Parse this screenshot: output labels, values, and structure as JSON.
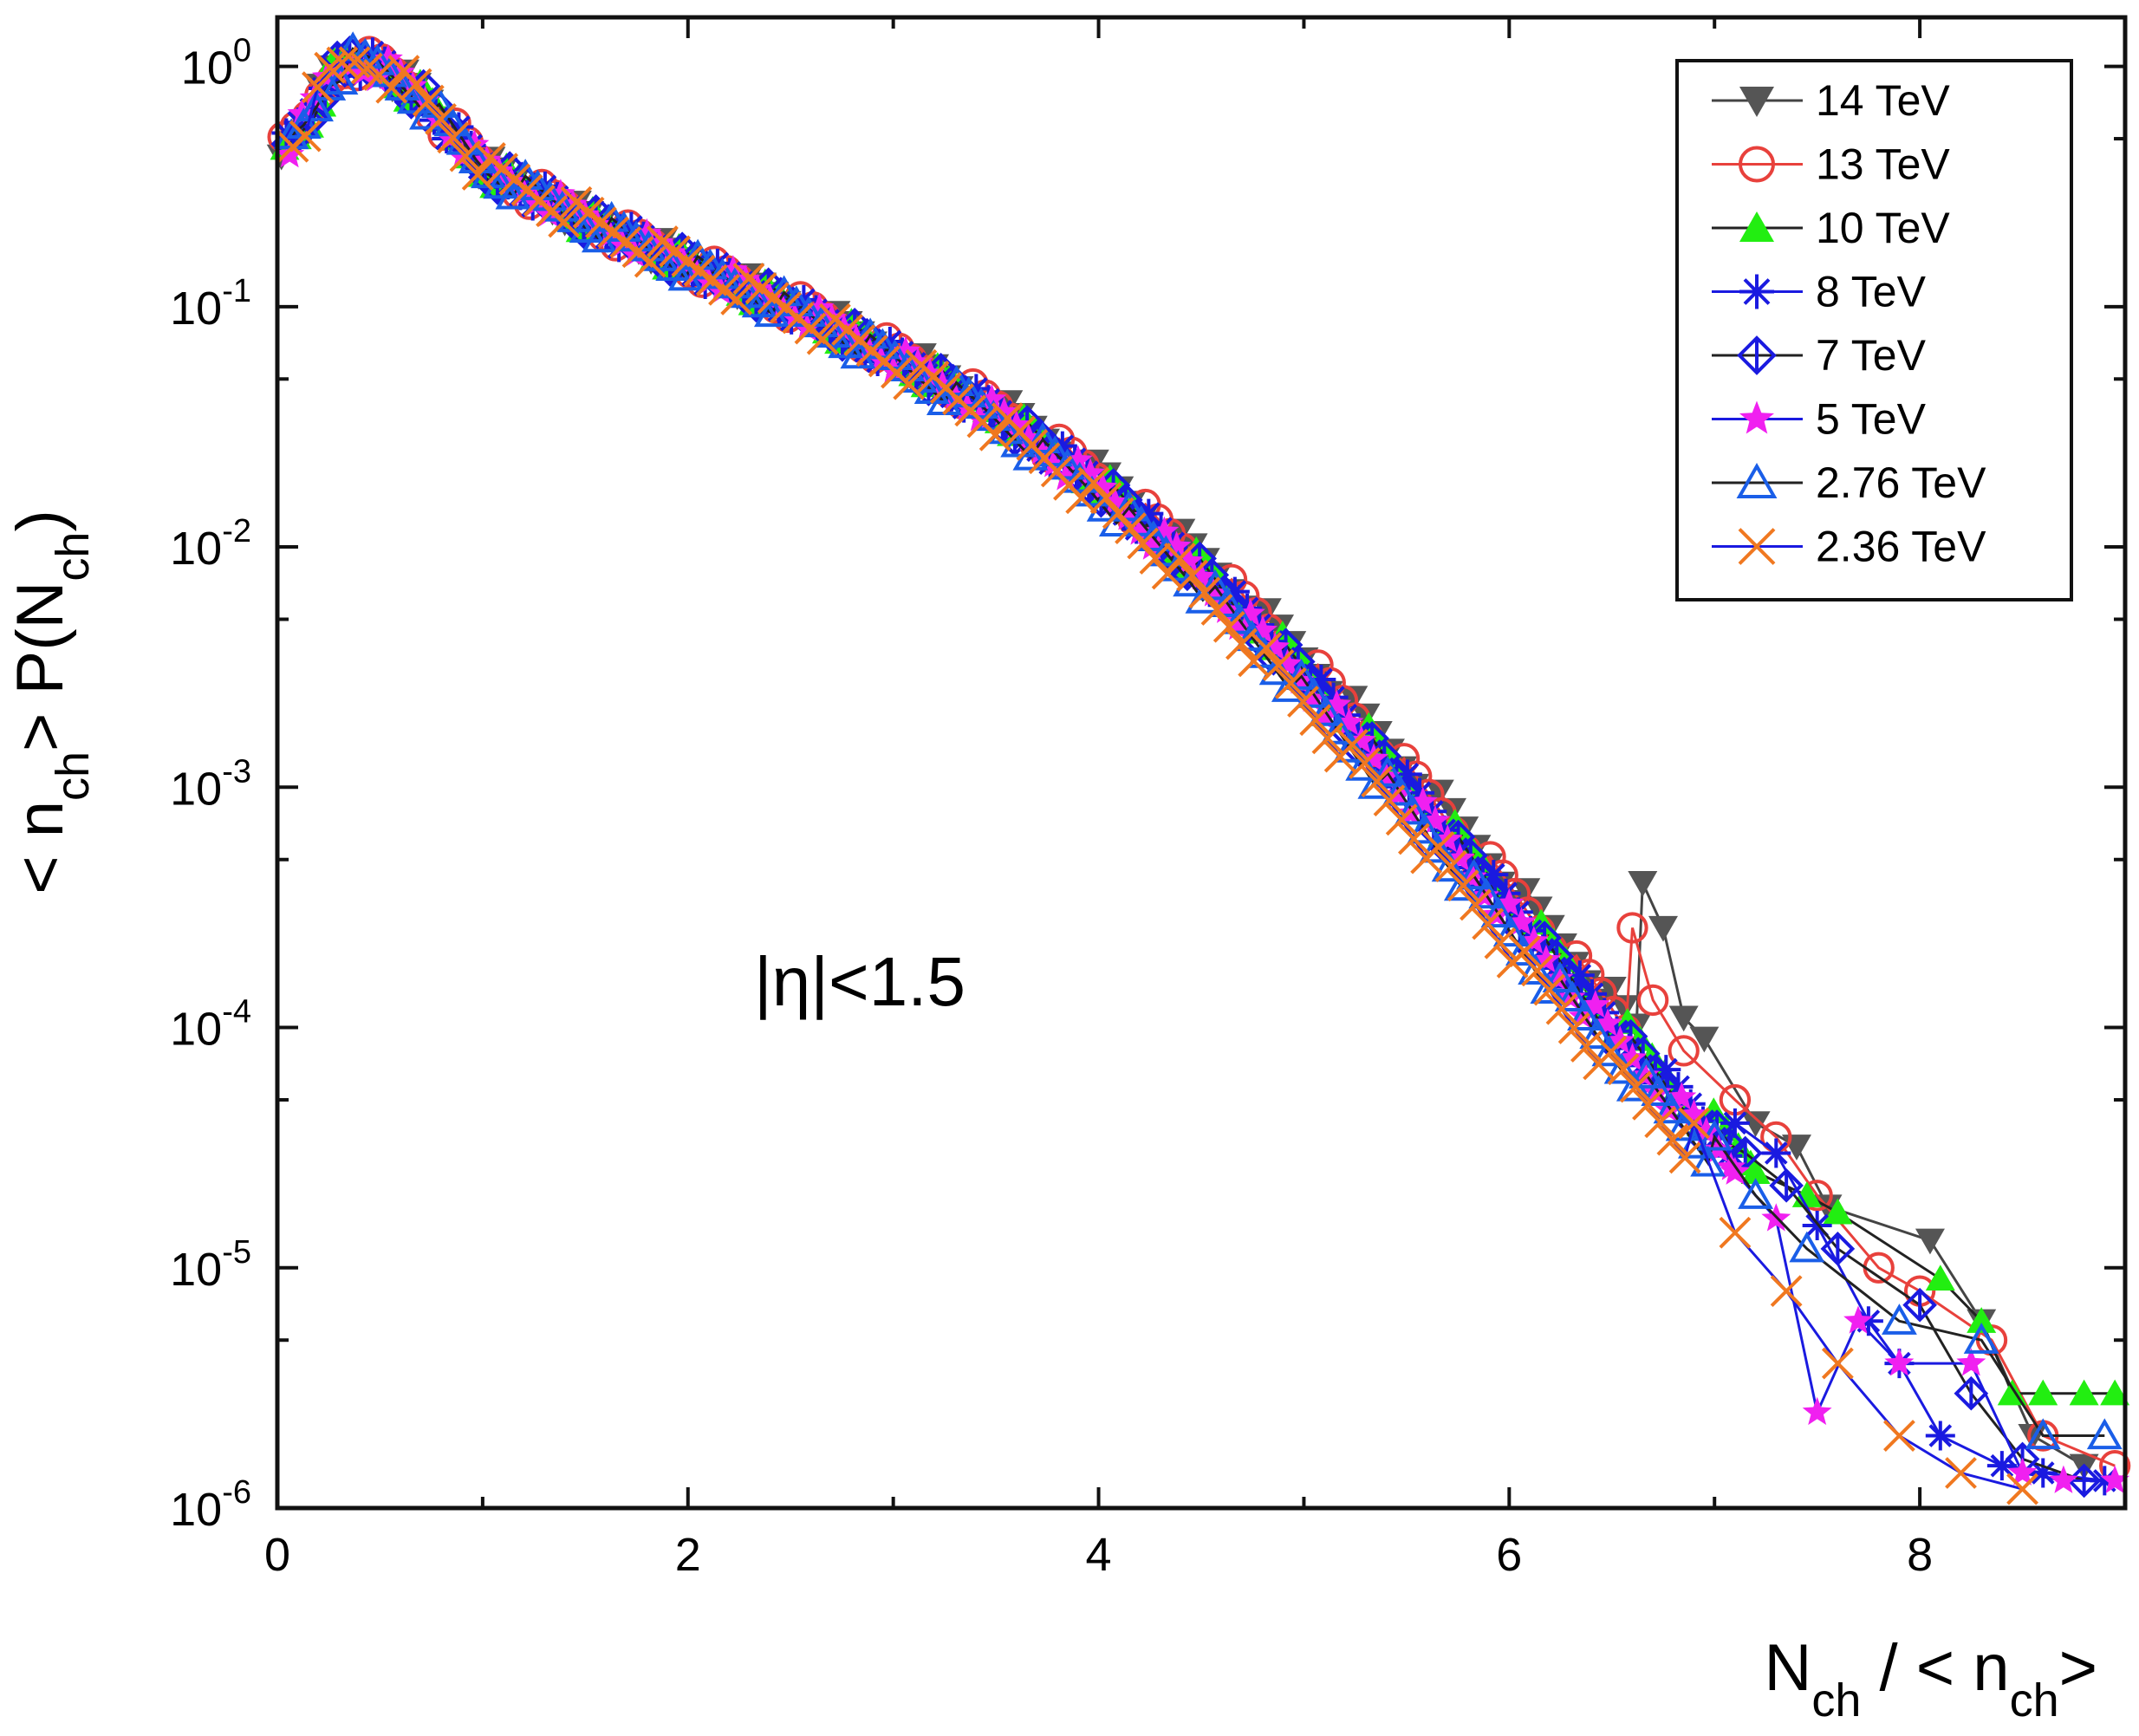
{
  "chart_data": {
    "type": "scatter",
    "title": "",
    "xlabel": {
      "main": "N",
      "sub1": "ch",
      "mid": " / < n",
      "sub2": "ch",
      "end": ">"
    },
    "ylabel": {
      "pre": "< n",
      "sub1": "ch",
      "mid": "> P(N",
      "sub2": "ch",
      "end": ")"
    },
    "xlim": [
      0,
      9
    ],
    "ylim": [
      1e-06,
      1.6
    ],
    "yscale": "log",
    "x_ticks": [
      "0",
      "2",
      "4",
      "6",
      "8"
    ],
    "x_tick_values": [
      0,
      2,
      4,
      6,
      8
    ],
    "y_ticks": [
      {
        "base": "10",
        "exp": "0",
        "value": 1
      },
      {
        "base": "10",
        "exp": "-1",
        "value": 0.1
      },
      {
        "base": "10",
        "exp": "-2",
        "value": 0.01
      },
      {
        "base": "10",
        "exp": "-3",
        "value": 0.001
      },
      {
        "base": "10",
        "exp": "-4",
        "value": 0.0001
      },
      {
        "base": "10",
        "exp": "-5",
        "value": 1e-05
      },
      {
        "base": "10",
        "exp": "-6",
        "value": 1e-06
      }
    ],
    "annotation": "|η|<1.5",
    "legend_position": "top-right",
    "series": [
      {
        "name": "14 TeV",
        "marker": "triangle-down-filled",
        "marker_color": "#555555",
        "line_color": "#444444",
        "shift": 0.14,
        "tail": [
          [
            6.65,
            0.0004
          ],
          [
            6.75,
            0.00026
          ],
          [
            6.85,
            0.00011
          ],
          [
            6.95,
            9e-05
          ],
          [
            7.2,
            4e-05
          ],
          [
            7.4,
            3.2e-05
          ],
          [
            7.55,
            1.8e-05
          ],
          [
            8.05,
            1.3e-05
          ],
          [
            8.3,
            6e-06
          ],
          [
            8.55,
            2e-06
          ],
          [
            8.8,
            1.5e-06
          ]
        ]
      },
      {
        "name": "13 TeV",
        "marker": "circle-open",
        "marker_color": "#e8413c",
        "line_color": "#e8413c",
        "shift": 0.1,
        "tail": [
          [
            6.6,
            0.00026
          ],
          [
            6.7,
            0.00013
          ],
          [
            6.85,
            8e-05
          ],
          [
            7.1,
            5e-05
          ],
          [
            7.3,
            3.5e-05
          ],
          [
            7.5,
            2e-05
          ],
          [
            7.8,
            1e-05
          ],
          [
            8.0,
            8e-06
          ],
          [
            8.35,
            5e-06
          ],
          [
            8.6,
            2e-06
          ],
          [
            8.95,
            1.5e-06
          ]
        ]
      },
      {
        "name": "10 TeV",
        "marker": "triangle-up-filled",
        "marker_color": "#22ee11",
        "line_color": "#222222",
        "shift": 0.06,
        "tail": [
          [
            7.2,
            2.5e-05
          ],
          [
            7.45,
            2e-05
          ],
          [
            7.6,
            1.7e-05
          ],
          [
            8.1,
            9e-06
          ],
          [
            8.3,
            6e-06
          ],
          [
            8.45,
            3e-06
          ],
          [
            8.6,
            3e-06
          ],
          [
            8.8,
            3e-06
          ],
          [
            8.95,
            3e-06
          ]
        ]
      },
      {
        "name": "8 TeV",
        "marker": "asterisk",
        "marker_color": "#1a1ae0",
        "line_color": "#1a1ae0",
        "shift": 0.02,
        "tail": [
          [
            7.1,
            4e-05
          ],
          [
            7.3,
            3e-05
          ],
          [
            7.5,
            1.5e-05
          ],
          [
            7.75,
            6e-06
          ],
          [
            7.9,
            4e-06
          ],
          [
            8.1,
            2e-06
          ],
          [
            8.4,
            1.5e-06
          ],
          [
            8.6,
            1.4e-06
          ],
          [
            8.9,
            1.3e-06
          ]
        ]
      },
      {
        "name": "7 TeV",
        "marker": "diamond-half",
        "marker_color": "#1a1ae0",
        "line_color": "#222222",
        "shift": 0.0,
        "tail": [
          [
            7.15,
            3e-05
          ],
          [
            7.35,
            2.2e-05
          ],
          [
            7.6,
            1.2e-05
          ],
          [
            8.0,
            7e-06
          ],
          [
            8.25,
            3e-06
          ],
          [
            8.5,
            1.6e-06
          ],
          [
            8.8,
            1.3e-06
          ]
        ]
      },
      {
        "name": "5 TeV",
        "marker": "star-filled",
        "marker_color": "#f020f0",
        "line_color": "#1a1ae0",
        "shift": -0.04,
        "tail": [
          [
            7.1,
            2.5e-05
          ],
          [
            7.3,
            1.6e-05
          ],
          [
            7.5,
            2.5e-06
          ],
          [
            7.7,
            6e-06
          ],
          [
            7.9,
            4e-06
          ],
          [
            8.25,
            4e-06
          ],
          [
            8.5,
            1.4e-06
          ],
          [
            8.7,
            1.3e-06
          ],
          [
            8.95,
            1.3e-06
          ]
        ]
      },
      {
        "name": "2.76 TeV",
        "marker": "triangle-up-open",
        "marker_color": "#1a5ee8",
        "line_color": "#222222",
        "shift": -0.12,
        "tail": [
          [
            7.0,
            3.5e-05
          ],
          [
            7.2,
            2e-05
          ],
          [
            7.45,
            1.2e-05
          ],
          [
            7.9,
            6e-06
          ],
          [
            8.3,
            5e-06
          ],
          [
            8.6,
            2e-06
          ],
          [
            8.9,
            2e-06
          ]
        ]
      },
      {
        "name": "2.36 TeV",
        "marker": "x",
        "marker_color": "#f07820",
        "line_color": "#1a1ae0",
        "shift": -0.2,
        "tail": [
          [
            6.9,
            4e-05
          ],
          [
            7.1,
            1.4e-05
          ],
          [
            7.35,
            8e-06
          ],
          [
            7.6,
            4e-06
          ],
          [
            7.9,
            2e-06
          ],
          [
            8.2,
            1.4e-06
          ],
          [
            8.5,
            1.2e-06
          ]
        ]
      }
    ]
  }
}
